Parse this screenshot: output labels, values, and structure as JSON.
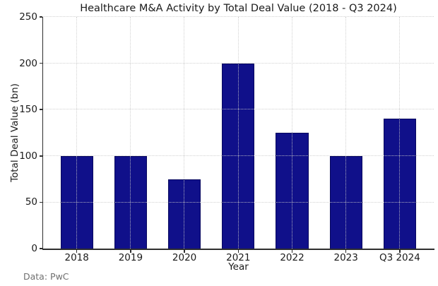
{
  "figure": {
    "background": "#ffffff"
  },
  "chart_data": {
    "type": "bar",
    "title": "Healthcare M&A Activity by Total Deal Value (2018 - Q3 2024)",
    "categories": [
      "2018",
      "2019",
      "2020",
      "2021",
      "2022",
      "2023",
      "Q3 2024"
    ],
    "values": [
      100,
      100,
      75,
      200,
      125,
      100,
      140
    ],
    "xlabel": "Year",
    "ylabel": "Total Deal Value (bn)",
    "ylim": [
      0,
      250
    ],
    "yticks": [
      0,
      50,
      100,
      150,
      200,
      250
    ],
    "grid": "dotted",
    "grid_color": "#c9c9c9",
    "legend_position": "none",
    "bar_color": "#10108a",
    "bar_edge_color": "#000050",
    "axis_color": "#2e2e2e",
    "text_color": "#1a1a1a",
    "source_note": "Data: PwC"
  }
}
